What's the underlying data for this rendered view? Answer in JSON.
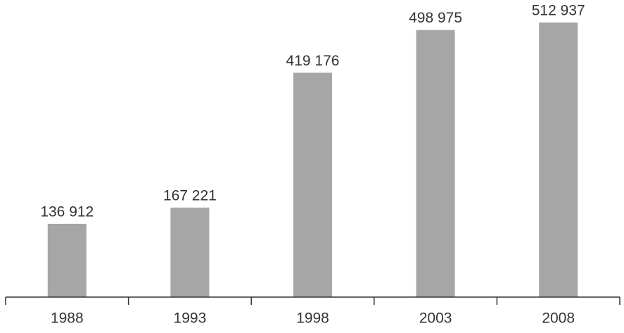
{
  "chart_data": {
    "type": "bar",
    "categories": [
      "1988",
      "1993",
      "1998",
      "2003",
      "2008"
    ],
    "values": [
      136912,
      167221,
      419176,
      498975,
      512937
    ],
    "value_labels": [
      "136 912",
      "167 221",
      "419 176",
      "498 975",
      "512 937"
    ],
    "color": "#a6a6a6"
  }
}
